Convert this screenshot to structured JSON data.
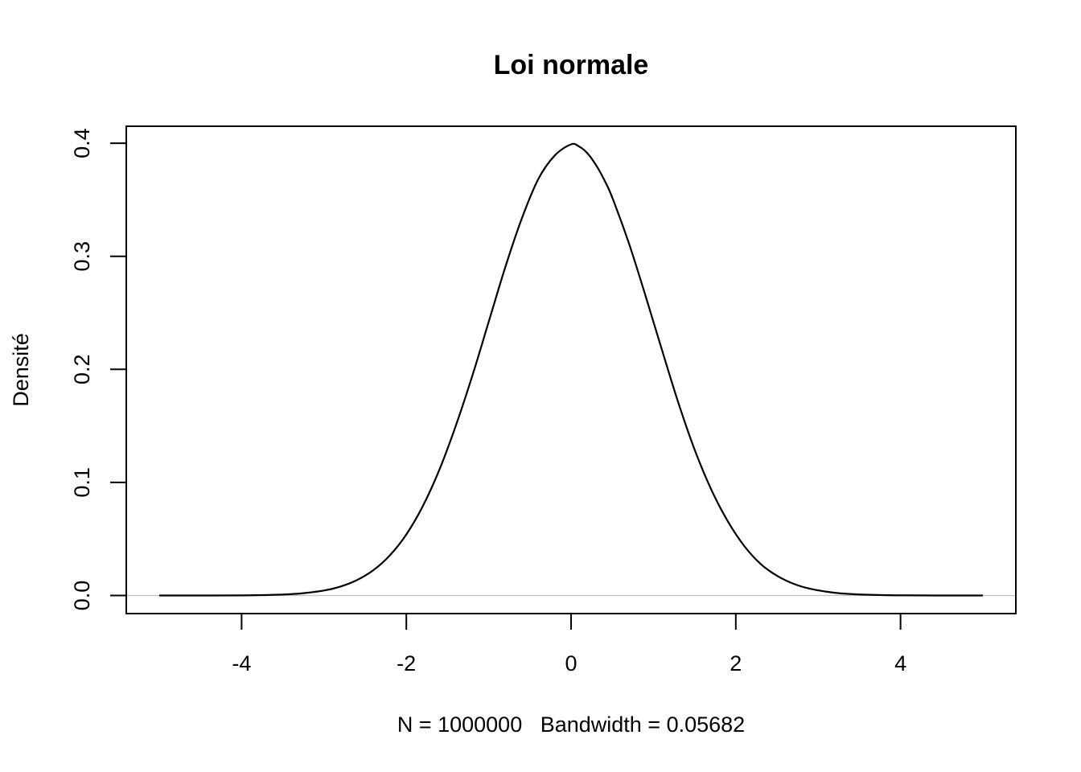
{
  "chart_data": {
    "type": "line",
    "title": "Loi normale",
    "xlabel": "N = 1000000   Bandwidth = 0.05682",
    "ylabel": "Densité",
    "xlim": [
      -5.4,
      5.4
    ],
    "ylim": [
      -0.016,
      0.415
    ],
    "x_ticks": [
      -4,
      -2,
      0,
      2,
      4
    ],
    "x_tick_labels": [
      "-4",
      "-2",
      "0",
      "2",
      "4"
    ],
    "y_ticks": [
      0.0,
      0.1,
      0.2,
      0.3,
      0.4
    ],
    "y_tick_labels": [
      "0.0",
      "0.1",
      "0.2",
      "0.3",
      "0.4"
    ],
    "grid": false,
    "legend": "none",
    "zero_line": true,
    "colors": {
      "line": "#000000",
      "zero_line": "#bebebe",
      "frame": "#000000"
    },
    "series": [
      {
        "x": [
          -5.0,
          -4.5,
          -4.0,
          -3.6,
          -3.3,
          -3.0,
          -2.8,
          -2.6,
          -2.4,
          -2.2,
          -2.0,
          -1.8,
          -1.6,
          -1.4,
          -1.2,
          -1.0,
          -0.8,
          -0.6,
          -0.4,
          -0.2,
          0.0,
          0.1,
          0.2,
          0.3,
          0.4,
          0.5,
          0.7,
          0.9,
          1.1,
          1.3,
          1.5,
          1.7,
          1.9,
          2.1,
          2.3,
          2.5,
          2.7,
          2.9,
          3.2,
          3.5,
          3.9,
          4.4,
          5.0
        ],
        "y": [
          0.0,
          0.0,
          0.0001,
          0.0006,
          0.0017,
          0.0044,
          0.0079,
          0.0136,
          0.0224,
          0.0355,
          0.054,
          0.079,
          0.111,
          0.15,
          0.194,
          0.242,
          0.29,
          0.333,
          0.368,
          0.389,
          0.399,
          0.397,
          0.391,
          0.381,
          0.368,
          0.352,
          0.312,
          0.266,
          0.218,
          0.171,
          0.129,
          0.094,
          0.066,
          0.044,
          0.028,
          0.0175,
          0.0104,
          0.006,
          0.0024,
          0.0009,
          0.0002,
          0.0,
          0.0
        ]
      }
    ]
  }
}
